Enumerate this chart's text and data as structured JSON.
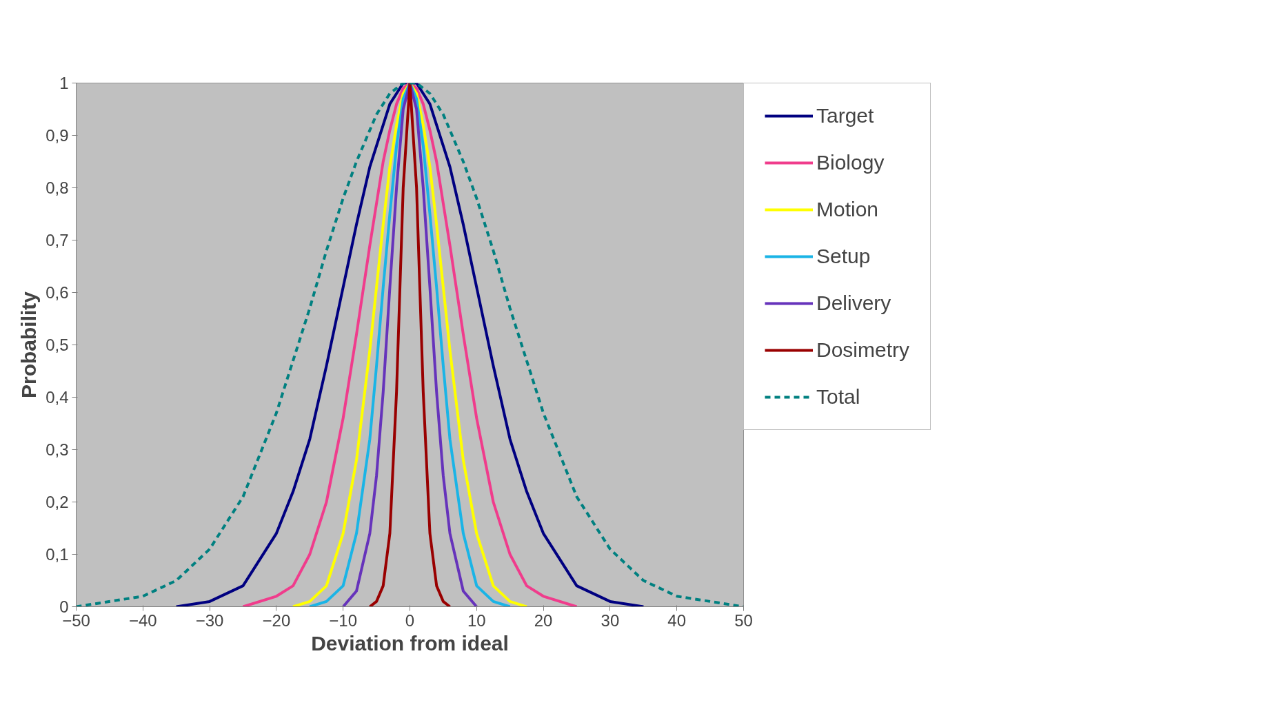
{
  "chart_data": {
    "type": "line",
    "xlabel": "Deviation from ideal",
    "ylabel": "Probability",
    "x": [
      -50,
      -40,
      -35,
      -30,
      -25,
      -20,
      -17.5,
      -15,
      -12.5,
      -10,
      -8,
      -6,
      -5,
      -4,
      -3,
      -2,
      -1,
      0,
      1,
      2,
      3,
      4,
      5,
      6,
      8,
      10,
      12.5,
      15,
      17.5,
      20,
      25,
      30,
      35,
      40,
      50
    ],
    "xlim": [
      -50,
      50
    ],
    "xticks": [
      -50,
      -40,
      -30,
      -20,
      -10,
      0,
      10,
      20,
      30,
      40,
      50
    ],
    "ylim": [
      0,
      1
    ],
    "yticks": [
      0,
      {
        "value": 0.1,
        "label": "0,1"
      },
      {
        "value": 0.2,
        "label": "0,2"
      },
      {
        "value": 0.3,
        "label": "0,3"
      },
      {
        "value": 0.4,
        "label": "0,4"
      },
      {
        "value": 0.5,
        "label": "0,5"
      },
      {
        "value": 0.6,
        "label": "0,6"
      },
      {
        "value": 0.7,
        "label": "0,7"
      },
      {
        "value": 0.8,
        "label": "0,8"
      },
      {
        "value": 0.9,
        "label": "0,9"
      },
      1
    ],
    "grid": false,
    "legend": "right",
    "marker": "none",
    "line_style": "solid",
    "series": [
      {
        "name": "Target",
        "color": "#000080",
        "x": [
          -35,
          -30,
          -25,
          -20,
          -17.5,
          -15,
          -12.5,
          -10,
          -8,
          -6,
          -5,
          -4,
          -3,
          -2,
          -1,
          0,
          1,
          2,
          3,
          4,
          5,
          6,
          8,
          10,
          12.5,
          15,
          17.5,
          20,
          25,
          30,
          35
        ],
        "values": [
          0,
          0.01,
          0.04,
          0.14,
          0.22,
          0.32,
          0.46,
          0.61,
          0.73,
          0.84,
          0.88,
          0.92,
          0.96,
          0.98,
          1.0,
          1,
          1.0,
          0.98,
          0.96,
          0.92,
          0.88,
          0.84,
          0.73,
          0.61,
          0.46,
          0.32,
          0.22,
          0.14,
          0.04,
          0.01,
          0
        ]
      },
      {
        "name": "Biology",
        "color": "#f03c8c",
        "x": [
          -25,
          -20,
          -17.5,
          -15,
          -12.5,
          -10,
          -8,
          -6,
          -5,
          -4,
          -3,
          -2,
          -1,
          0,
          1,
          2,
          3,
          4,
          5,
          6,
          8,
          10,
          12.5,
          15,
          17.5,
          20,
          25
        ],
        "values": [
          0,
          0.02,
          0.04,
          0.1,
          0.2,
          0.36,
          0.52,
          0.69,
          0.77,
          0.85,
          0.91,
          0.96,
          0.99,
          1,
          0.99,
          0.96,
          0.91,
          0.85,
          0.77,
          0.69,
          0.52,
          0.36,
          0.2,
          0.1,
          0.04,
          0.02,
          0
        ]
      },
      {
        "name": "Motion",
        "color": "#ffff00",
        "x": [
          -17.5,
          -15,
          -12.5,
          -10,
          -8,
          -6,
          -5,
          -4,
          -3,
          -2,
          -1,
          0,
          1,
          2,
          3,
          4,
          5,
          6,
          8,
          10,
          12.5,
          15,
          17.5
        ],
        "values": [
          0,
          0.01,
          0.04,
          0.14,
          0.28,
          0.49,
          0.61,
          0.73,
          0.84,
          0.92,
          0.98,
          1,
          0.98,
          0.92,
          0.84,
          0.73,
          0.61,
          0.49,
          0.28,
          0.14,
          0.04,
          0.01,
          0
        ]
      },
      {
        "name": "Setup",
        "color": "#1ab4e6",
        "x": [
          -15,
          -12.5,
          -10,
          -8,
          -6,
          -5,
          -4,
          -3,
          -2,
          -1,
          0,
          1,
          2,
          3,
          4,
          5,
          6,
          8,
          10,
          12.5,
          15
        ],
        "values": [
          0,
          0.01,
          0.04,
          0.14,
          0.32,
          0.46,
          0.61,
          0.75,
          0.88,
          0.97,
          1,
          0.97,
          0.88,
          0.75,
          0.61,
          0.46,
          0.32,
          0.14,
          0.04,
          0.01,
          0
        ]
      },
      {
        "name": "Delivery",
        "color": "#6633bb",
        "x": [
          -10,
          -8,
          -6,
          -5,
          -4,
          -3,
          -2,
          -1,
          0,
          1,
          2,
          3,
          4,
          5,
          6,
          8,
          10
        ],
        "values": [
          0,
          0.03,
          0.14,
          0.25,
          0.41,
          0.61,
          0.8,
          0.95,
          1,
          0.95,
          0.8,
          0.61,
          0.41,
          0.25,
          0.14,
          0.03,
          0
        ]
      },
      {
        "name": "Dosimetry",
        "color": "#990000",
        "x": [
          -6,
          -5,
          -4,
          -3,
          -2,
          -1,
          0,
          1,
          2,
          3,
          4,
          5,
          6
        ],
        "values": [
          0,
          0.01,
          0.04,
          0.14,
          0.41,
          0.8,
          1,
          0.8,
          0.41,
          0.14,
          0.04,
          0.01,
          0
        ]
      },
      {
        "name": "Total",
        "color": "#008080",
        "line_style": "dashed",
        "values": [
          0,
          0.02,
          0.05,
          0.11,
          0.21,
          0.37,
          0.47,
          0.57,
          0.68,
          0.78,
          0.85,
          0.91,
          0.94,
          0.96,
          0.98,
          0.99,
          1.0,
          1,
          1.0,
          0.99,
          0.98,
          0.96,
          0.94,
          0.91,
          0.85,
          0.78,
          0.68,
          0.57,
          0.47,
          0.37,
          0.21,
          0.11,
          0.05,
          0.02,
          0
        ]
      }
    ]
  }
}
